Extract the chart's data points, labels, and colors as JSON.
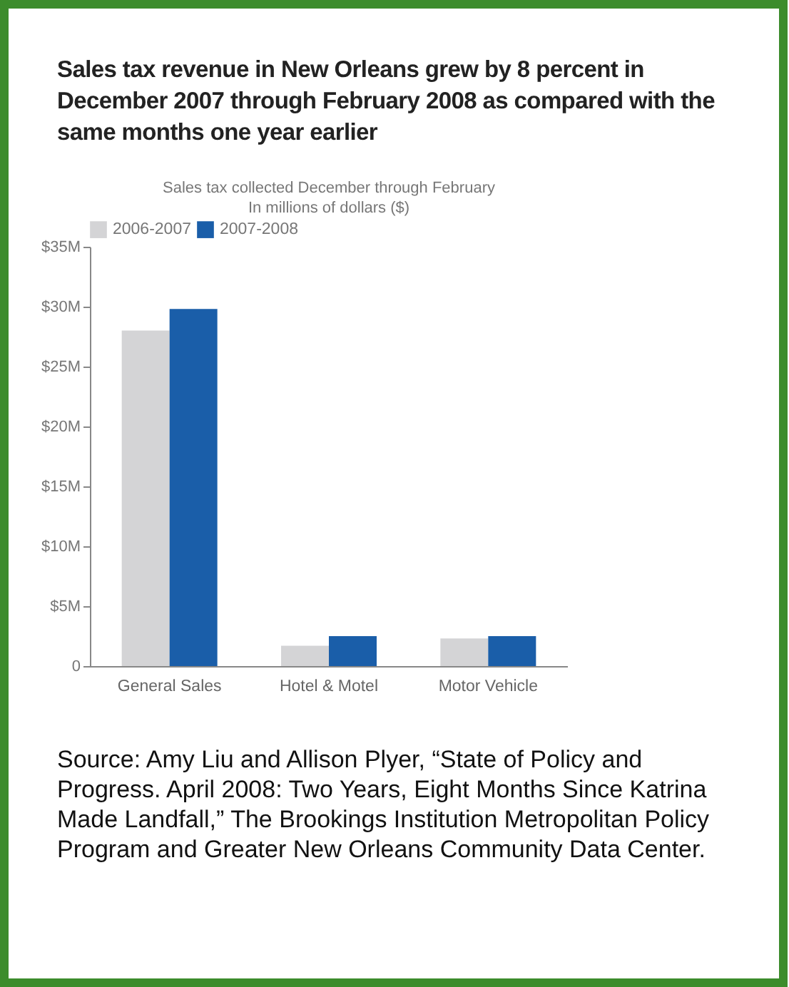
{
  "chart_data": {
    "type": "bar",
    "title": "Sales tax revenue in New Orleans grew by 8 percent in December 2007 through February 2008 as compared with the same months one year earlier",
    "subtitle": "Sales tax collected December through February\nIn millions of dollars ($)",
    "categories": [
      "General Sales",
      "Hotel & Motel",
      "Motor Vehicle"
    ],
    "series": [
      {
        "name": "2006-2007",
        "color": "#d4d4d6",
        "values": [
          28,
          1.7,
          2.3
        ]
      },
      {
        "name": "2007-2008",
        "color": "#1a5ea9",
        "values": [
          29.8,
          2.5,
          2.5
        ]
      }
    ],
    "ylim": [
      0,
      35
    ],
    "yticks": [
      0,
      {
        "value": 5,
        "label": "$5M"
      },
      {
        "value": 10,
        "label": "$10M"
      },
      {
        "value": 15,
        "label": "$15M"
      },
      {
        "value": 20,
        "label": "$20M"
      },
      {
        "value": 25,
        "label": "$25M"
      },
      {
        "value": 30,
        "label": "$30M"
      },
      {
        "value": 35,
        "label": "$35M"
      }
    ],
    "grid": false,
    "legend": "top",
    "annotations": [
      "Source: Amy Liu and Allison Plyer, “State of Policy and Progress. April 2008: Two Years, Eight Months Since Katrina Made Landfall,” The Brookings Institution Metropolitan Policy Program and Greater New Orleans Community Data Center."
    ]
  }
}
